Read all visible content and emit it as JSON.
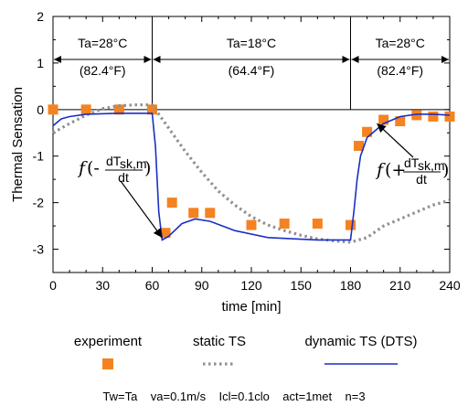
{
  "chart_data": {
    "type": "line",
    "xlabel": "time  [min]",
    "ylabel": "Thermal Sensation",
    "xlim": [
      0,
      240
    ],
    "ylim": [
      -3.5,
      2
    ],
    "x_ticks": [
      0,
      30,
      60,
      90,
      120,
      150,
      180,
      210,
      240
    ],
    "y_ticks": [
      2,
      1,
      0,
      -1,
      -2,
      -3
    ],
    "periods": [
      {
        "start": 0,
        "end": 60,
        "ta_c": "Ta=28°C",
        "ta_f": "(82.4°F)"
      },
      {
        "start": 60,
        "end": 180,
        "ta_c": "Ta=18°C",
        "ta_f": "(64.4°F)"
      },
      {
        "start": 180,
        "end": 240,
        "ta_c": "Ta=28°C",
        "ta_f": "(82.4°F)"
      }
    ],
    "series": [
      {
        "name": "experiment",
        "style": "square-markers",
        "color": "#f58220",
        "points": [
          [
            0,
            0
          ],
          [
            20,
            0
          ],
          [
            40,
            0
          ],
          [
            60,
            0
          ],
          [
            68,
            -2.65
          ],
          [
            72,
            -2.0
          ],
          [
            85,
            -2.22
          ],
          [
            95,
            -2.22
          ],
          [
            120,
            -2.48
          ],
          [
            140,
            -2.45
          ],
          [
            160,
            -2.45
          ],
          [
            180,
            -2.48
          ],
          [
            185,
            -0.78
          ],
          [
            190,
            -0.48
          ],
          [
            200,
            -0.22
          ],
          [
            210,
            -0.25
          ],
          [
            220,
            -0.12
          ],
          [
            230,
            -0.15
          ],
          [
            240,
            -0.15
          ]
        ]
      },
      {
        "name": "static TS",
        "style": "dotted",
        "color": "#909090",
        "points": [
          [
            0,
            -0.5
          ],
          [
            10,
            -0.3
          ],
          [
            20,
            -0.12
          ],
          [
            30,
            0.02
          ],
          [
            40,
            0.08
          ],
          [
            50,
            0.1
          ],
          [
            60,
            0.1
          ],
          [
            70,
            -0.4
          ],
          [
            80,
            -0.9
          ],
          [
            90,
            -1.35
          ],
          [
            100,
            -1.75
          ],
          [
            110,
            -2.05
          ],
          [
            120,
            -2.3
          ],
          [
            130,
            -2.48
          ],
          [
            140,
            -2.6
          ],
          [
            150,
            -2.7
          ],
          [
            160,
            -2.78
          ],
          [
            170,
            -2.82
          ],
          [
            180,
            -2.85
          ],
          [
            190,
            -2.75
          ],
          [
            200,
            -2.5
          ],
          [
            210,
            -2.35
          ],
          [
            220,
            -2.2
          ],
          [
            230,
            -2.05
          ],
          [
            240,
            -1.95
          ]
        ]
      },
      {
        "name": "dynamic TS (DTS)",
        "style": "solid",
        "color": "#1b2fc4",
        "points": [
          [
            0,
            -0.35
          ],
          [
            5,
            -0.2
          ],
          [
            10,
            -0.15
          ],
          [
            20,
            -0.1
          ],
          [
            40,
            -0.08
          ],
          [
            60,
            -0.08
          ],
          [
            62,
            -0.8
          ],
          [
            64,
            -2.2
          ],
          [
            66,
            -2.8
          ],
          [
            70,
            -2.72
          ],
          [
            78,
            -2.45
          ],
          [
            86,
            -2.35
          ],
          [
            95,
            -2.4
          ],
          [
            110,
            -2.6
          ],
          [
            130,
            -2.75
          ],
          [
            160,
            -2.8
          ],
          [
            180,
            -2.8
          ],
          [
            182,
            -2.2
          ],
          [
            184,
            -1.5
          ],
          [
            186,
            -1.0
          ],
          [
            190,
            -0.6
          ],
          [
            200,
            -0.3
          ],
          [
            210,
            -0.15
          ],
          [
            220,
            -0.1
          ],
          [
            230,
            -0.1
          ],
          [
            240,
            -0.12
          ]
        ]
      }
    ],
    "legend": {
      "placement": "bottom"
    },
    "annotations": {
      "cool": {
        "prefix": "f(-",
        "num": "dT",
        "sub": "sk,m",
        "den": "dt",
        "suffix": ")",
        "arrow_to": [
          66,
          -2.75
        ]
      },
      "warm": {
        "prefix": "f(+",
        "num": "dT",
        "sub": "sk,m",
        "den": "dt",
        "suffix": ")",
        "arrow_to": [
          196,
          -0.3
        ]
      }
    }
  },
  "conditions": "Tw=Ta    va=0.1m/s    Icl=0.1clo    act=1met    n=3"
}
